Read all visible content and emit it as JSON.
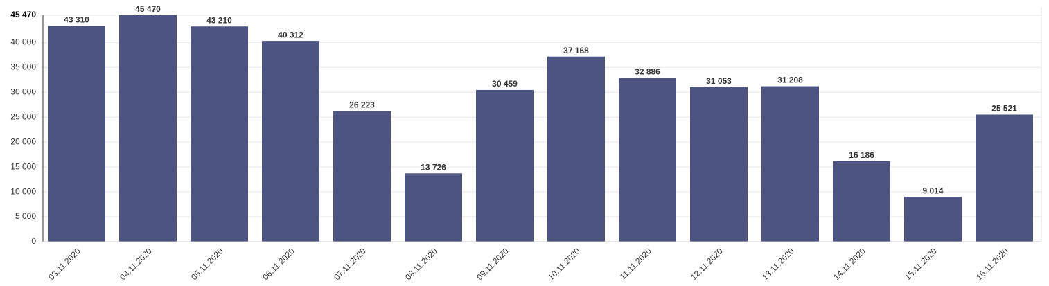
{
  "chart_data": {
    "type": "bar",
    "categories": [
      "03.11.2020",
      "04.11.2020",
      "05.11.2020",
      "06.11.2020",
      "07.11.2020",
      "08.11.2020",
      "09.11.2020",
      "10.11.2020",
      "11.11.2020",
      "12.11.2020",
      "13.11.2020",
      "14.11.2020",
      "15.11.2020",
      "16.11.2020"
    ],
    "values": [
      43310,
      45470,
      43210,
      40312,
      26223,
      13726,
      30459,
      37168,
      32886,
      31053,
      31208,
      16186,
      9014,
      25521
    ],
    "value_labels": [
      "43 310",
      "45 470",
      "43 210",
      "40 312",
      "26 223",
      "13 726",
      "30 459",
      "37 168",
      "32 886",
      "31 053",
      "31 208",
      "16 186",
      "9 014",
      "25 521"
    ],
    "color": "#4d5482",
    "ylim": [
      0,
      45470
    ],
    "yticks": [
      0,
      {
        "value": 5000,
        "label": "5 000"
      },
      {
        "value": 10000,
        "label": "10 000"
      },
      {
        "value": 15000,
        "label": "15 000"
      },
      {
        "value": 20000,
        "label": "20 000"
      },
      {
        "value": 25000,
        "label": "25 000"
      },
      {
        "value": 30000,
        "label": "30 000"
      },
      {
        "value": 35000,
        "label": "35 000"
      },
      {
        "value": 40000,
        "label": "40 000"
      },
      {
        "value": 45470,
        "label": "45 470"
      }
    ],
    "grid": true
  }
}
